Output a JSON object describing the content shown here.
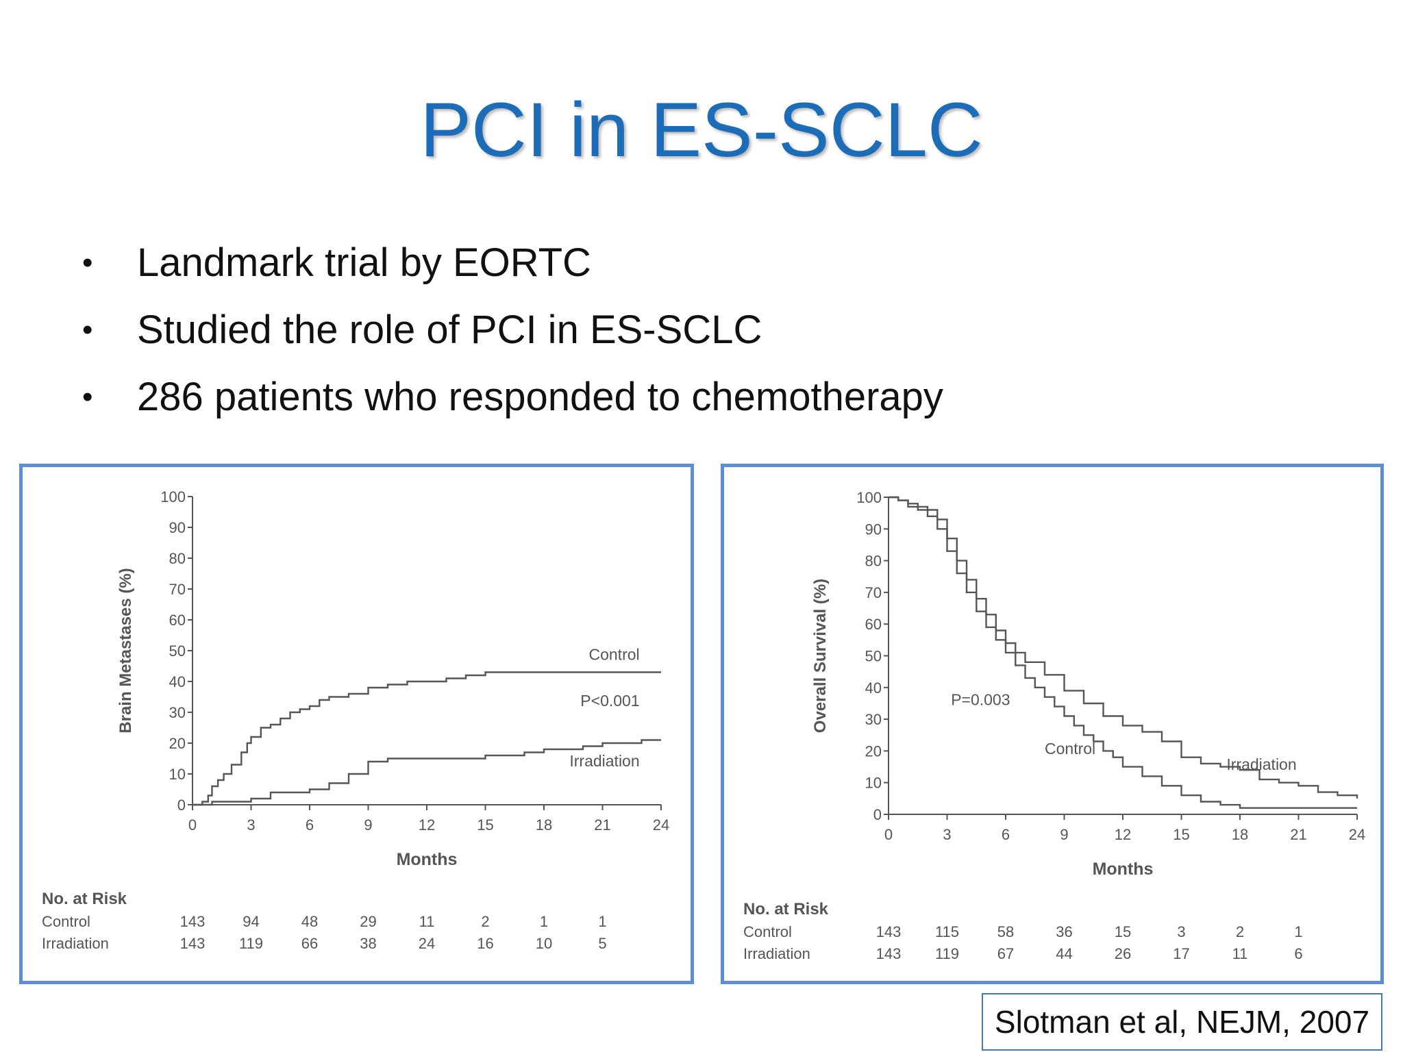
{
  "slide": {
    "title": "PCI in ES-SCLC",
    "bullets": [
      "Landmark trial by EORTC",
      "Studied the role of PCI in ES-SCLC",
      "286 patients who responded to chemotherapy"
    ],
    "citation": "Slotman et al, NEJM, 2007"
  },
  "colors": {
    "title": "#1c6cb8",
    "panel_border": "#5b8ed3",
    "line": "#555555"
  },
  "chart_data": [
    {
      "type": "line",
      "ylabel": "Brain Metastases (%)",
      "xlabel": "Months",
      "xlim": [
        0,
        24
      ],
      "ylim": [
        0,
        100
      ],
      "xticks": [
        0,
        3,
        6,
        9,
        12,
        15,
        18,
        21,
        24
      ],
      "yticks": [
        0,
        10,
        20,
        30,
        40,
        50,
        60,
        70,
        80,
        90,
        100
      ],
      "annotations": [
        {
          "text": "Control",
          "x": 22.9,
          "y": 47
        },
        {
          "text": "P<0.001",
          "x": 22.9,
          "y": 32
        },
        {
          "text": "Irradiation",
          "x": 22.9,
          "y": 12.5
        }
      ],
      "series": [
        {
          "name": "Control",
          "x": [
            0,
            0.5,
            0.8,
            1,
            1.3,
            1.6,
            2,
            2.5,
            2.8,
            3,
            3.5,
            4,
            4.5,
            5,
            5.5,
            6,
            6.5,
            7,
            8,
            9,
            10,
            11,
            12,
            13,
            14,
            15,
            16,
            17,
            18,
            19,
            20,
            21,
            22,
            23,
            24
          ],
          "y": [
            0,
            1,
            3,
            6,
            8,
            10,
            13,
            17,
            20,
            22,
            25,
            26,
            28,
            30,
            31,
            32,
            34,
            35,
            36,
            38,
            39,
            40,
            40,
            41,
            42,
            43,
            43,
            43,
            43,
            43,
            43,
            43,
            43,
            43,
            43
          ]
        },
        {
          "name": "Irradiation",
          "x": [
            0,
            1,
            2,
            3,
            4,
            5,
            6,
            7,
            8,
            9,
            10,
            11,
            12,
            13,
            14,
            15,
            16,
            17,
            18,
            19,
            20,
            21,
            22,
            23,
            24
          ],
          "y": [
            0,
            1,
            1,
            2,
            4,
            4,
            5,
            7,
            10,
            14,
            15,
            15,
            15,
            15,
            15,
            16,
            16,
            17,
            18,
            18,
            19,
            20,
            20,
            21,
            21
          ]
        }
      ],
      "at_risk": {
        "title": "No. at Risk",
        "rows": [
          {
            "label": "Control",
            "values": [
              "143",
              "94",
              "48",
              "29",
              "11",
              "2",
              "1",
              "1"
            ]
          },
          {
            "label": "Irradiation",
            "values": [
              "143",
              "119",
              "66",
              "38",
              "24",
              "16",
              "10",
              "5"
            ]
          }
        ]
      }
    },
    {
      "type": "line",
      "ylabel": "Overall Survival (%)",
      "xlabel": "Months",
      "xlim": [
        0,
        24
      ],
      "ylim": [
        0,
        100
      ],
      "xticks": [
        0,
        3,
        6,
        9,
        12,
        15,
        18,
        21,
        24
      ],
      "yticks": [
        0,
        10,
        20,
        30,
        40,
        50,
        60,
        70,
        80,
        90,
        100
      ],
      "annotations": [
        {
          "text": "P=0.003",
          "x": 3.2,
          "y": 34.5
        },
        {
          "text": "Control",
          "x": 8.0,
          "y": 19
        },
        {
          "text": "Irradiation",
          "x": 20.9,
          "y": 14
        }
      ],
      "series": [
        {
          "name": "Control",
          "x": [
            0,
            0.5,
            1,
            1.5,
            2,
            2.5,
            3,
            3.5,
            4,
            4.5,
            5,
            5.5,
            6,
            6.5,
            7,
            7.5,
            8,
            8.5,
            9,
            9.5,
            10,
            10.5,
            11,
            11.5,
            12,
            13,
            14,
            15,
            16,
            17,
            18,
            19,
            20,
            21,
            22,
            23,
            24
          ],
          "y": [
            100,
            99,
            97,
            96,
            94,
            90,
            83,
            76,
            70,
            64,
            59,
            55,
            51,
            47,
            43,
            40,
            37,
            34,
            31,
            28,
            25,
            23,
            20,
            18,
            15,
            12,
            9,
            6,
            4,
            3,
            2,
            2,
            2,
            2,
            2,
            2,
            2
          ]
        },
        {
          "name": "Irradiation",
          "x": [
            0,
            0.5,
            1,
            1.5,
            2,
            2.5,
            3,
            3.5,
            4,
            4.5,
            5,
            5.5,
            6,
            6.5,
            7,
            8,
            9,
            10,
            11,
            12,
            13,
            14,
            15,
            16,
            17,
            18,
            19,
            20,
            21,
            22,
            23,
            24
          ],
          "y": [
            100,
            99,
            98,
            97,
            96,
            93,
            87,
            80,
            74,
            68,
            63,
            58,
            54,
            51,
            48,
            44,
            39,
            35,
            31,
            28,
            26,
            23,
            18,
            16,
            15,
            14,
            11,
            10,
            9,
            7,
            6,
            5
          ]
        }
      ],
      "at_risk": {
        "title": "No. at Risk",
        "rows": [
          {
            "label": "Control",
            "values": [
              "143",
              "115",
              "58",
              "36",
              "15",
              "3",
              "2",
              "1"
            ]
          },
          {
            "label": "Irradiation",
            "values": [
              "143",
              "119",
              "67",
              "44",
              "26",
              "17",
              "11",
              "6"
            ]
          }
        ]
      }
    }
  ]
}
